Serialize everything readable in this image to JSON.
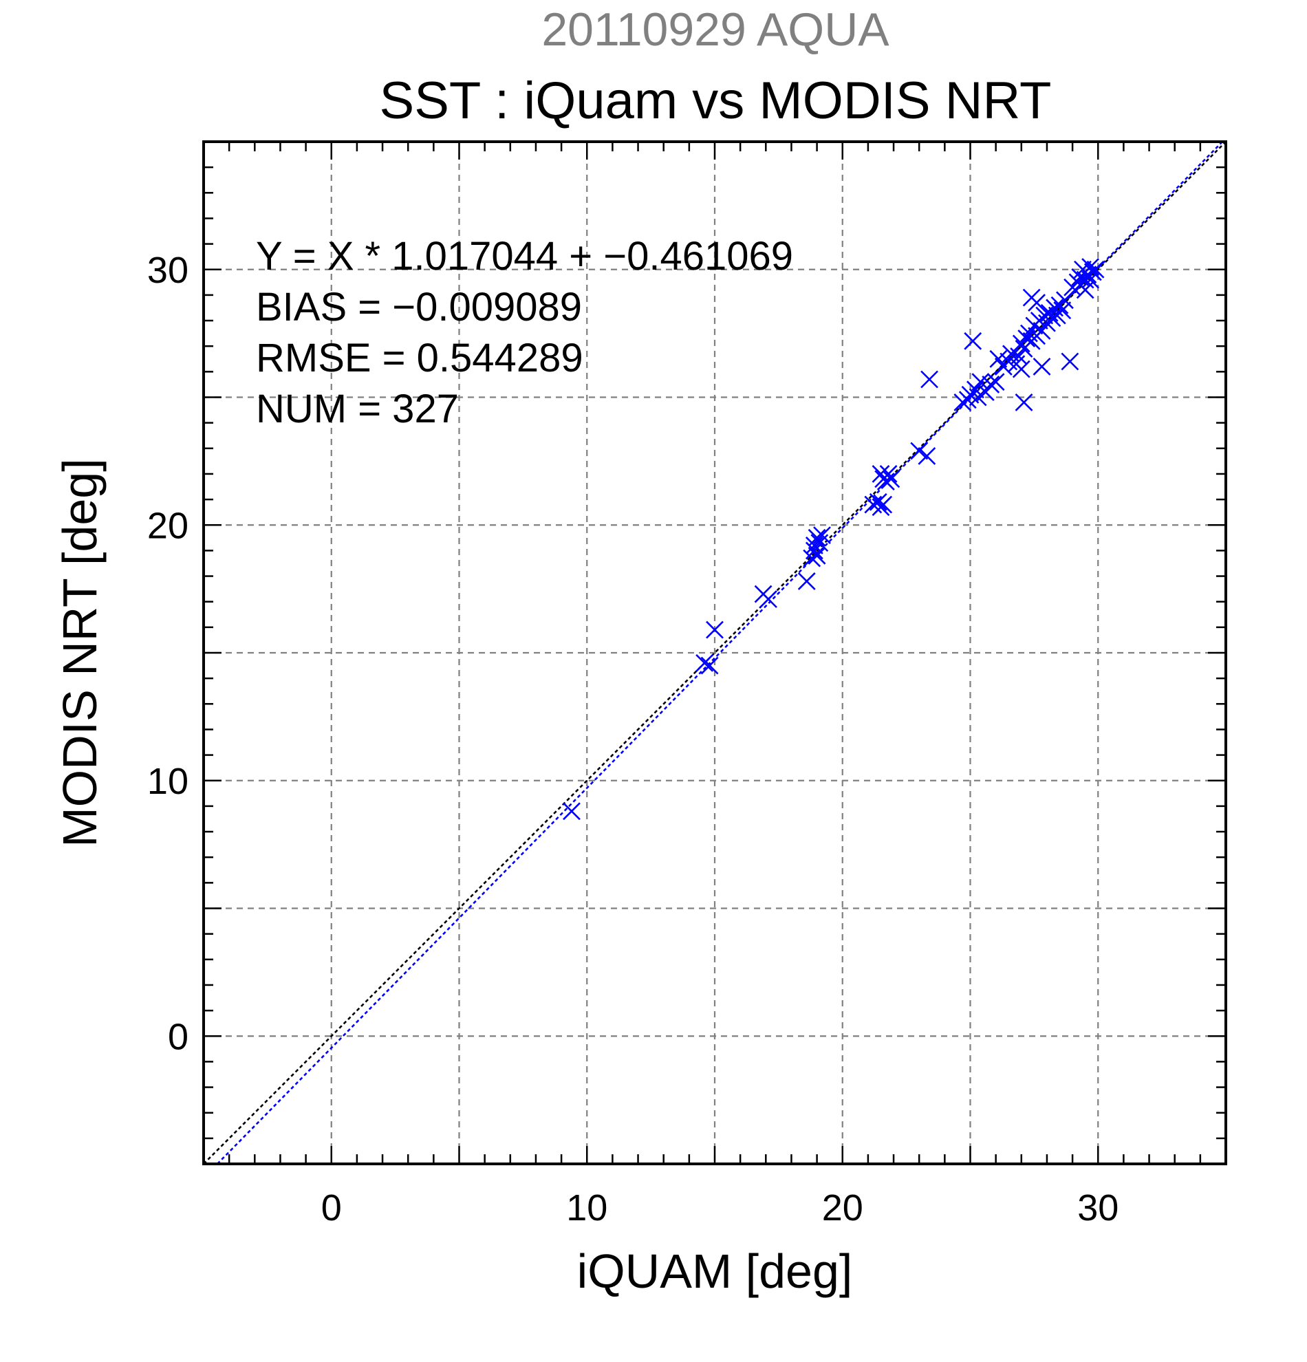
{
  "chart_data": {
    "type": "scatter",
    "title_date": "20110929 AQUA",
    "title": "SST : iQuam vs MODIS NRT",
    "xlabel": "iQUAM [deg]",
    "ylabel": "MODIS NRT [deg]",
    "xlim": [
      -5,
      35
    ],
    "ylim": [
      -5,
      35
    ],
    "x_ticks": [
      0,
      10,
      20,
      30
    ],
    "y_ticks": [
      0,
      10,
      20,
      30
    ],
    "x_tick_labels": [
      "0",
      "10",
      "20",
      "30"
    ],
    "y_tick_labels": [
      "0",
      "10",
      "20",
      "30"
    ],
    "grid": true,
    "stats": {
      "fit": "Y = X * 1.017044 + −0.461069",
      "bias": "BIAS = −0.009089",
      "rmse": "RMSE = 0.544289",
      "num": "NUM = 327"
    },
    "fit_line": {
      "slope": 1.017044,
      "intercept": -0.461069,
      "color": "#0000ff"
    },
    "identity_line": {
      "slope": 1,
      "intercept": 0,
      "color": "#000000"
    },
    "marker_color": "#0000ff",
    "points": [
      [
        9.4,
        8.8
      ],
      [
        14.6,
        14.6
      ],
      [
        14.8,
        14.5
      ],
      [
        15.0,
        15.9
      ],
      [
        16.9,
        17.3
      ],
      [
        17.1,
        17.1
      ],
      [
        18.6,
        17.8
      ],
      [
        18.8,
        18.7
      ],
      [
        18.9,
        19.0
      ],
      [
        19.0,
        18.8
      ],
      [
        19.1,
        19.3
      ],
      [
        19.2,
        19.6
      ],
      [
        18.9,
        19.2
      ],
      [
        19.0,
        19.5
      ],
      [
        21.2,
        20.8
      ],
      [
        21.4,
        20.9
      ],
      [
        21.5,
        20.7
      ],
      [
        21.6,
        20.8
      ],
      [
        21.5,
        22.0
      ],
      [
        21.6,
        21.8
      ],
      [
        21.8,
        22.0
      ],
      [
        21.9,
        21.8
      ],
      [
        21.7,
        21.7
      ],
      [
        23.0,
        22.9
      ],
      [
        23.3,
        22.7
      ],
      [
        23.4,
        25.7
      ],
      [
        24.7,
        24.8
      ],
      [
        24.9,
        24.9
      ],
      [
        25.0,
        25.1
      ],
      [
        25.1,
        27.2
      ],
      [
        25.2,
        25.3
      ],
      [
        25.3,
        25.0
      ],
      [
        25.4,
        25.6
      ],
      [
        25.6,
        25.2
      ],
      [
        25.8,
        25.5
      ],
      [
        26.0,
        25.6
      ],
      [
        26.1,
        26.5
      ],
      [
        26.3,
        26.2
      ],
      [
        26.5,
        26.4
      ],
      [
        26.6,
        26.7
      ],
      [
        26.8,
        26.3
      ],
      [
        26.9,
        26.6
      ],
      [
        27.0,
        26.1
      ],
      [
        27.0,
        27.1
      ],
      [
        27.1,
        26.9
      ],
      [
        27.2,
        27.3
      ],
      [
        27.3,
        27.5
      ],
      [
        27.4,
        27.2
      ],
      [
        27.5,
        27.8
      ],
      [
        27.6,
        27.4
      ],
      [
        27.7,
        28.0
      ],
      [
        27.8,
        27.6
      ],
      [
        27.9,
        28.2
      ],
      [
        28.0,
        27.9
      ],
      [
        28.1,
        28.3
      ],
      [
        28.2,
        28.1
      ],
      [
        28.3,
        28.5
      ],
      [
        28.4,
        28.2
      ],
      [
        28.5,
        28.6
      ],
      [
        28.6,
        28.4
      ],
      [
        28.7,
        28.8
      ],
      [
        27.1,
        24.8
      ],
      [
        27.8,
        26.2
      ],
      [
        28.9,
        26.4
      ],
      [
        27.4,
        28.9
      ],
      [
        27.6,
        28.7
      ],
      [
        29.0,
        29.3
      ],
      [
        29.2,
        29.5
      ],
      [
        29.3,
        29.7
      ],
      [
        29.4,
        30.0
      ],
      [
        29.5,
        29.6
      ],
      [
        29.6,
        29.8
      ],
      [
        29.7,
        30.1
      ],
      [
        29.8,
        29.9
      ],
      [
        29.9,
        30.0
      ],
      [
        29.5,
        29.2
      ],
      [
        29.3,
        29.4
      ],
      [
        29.7,
        29.6
      ]
    ]
  }
}
